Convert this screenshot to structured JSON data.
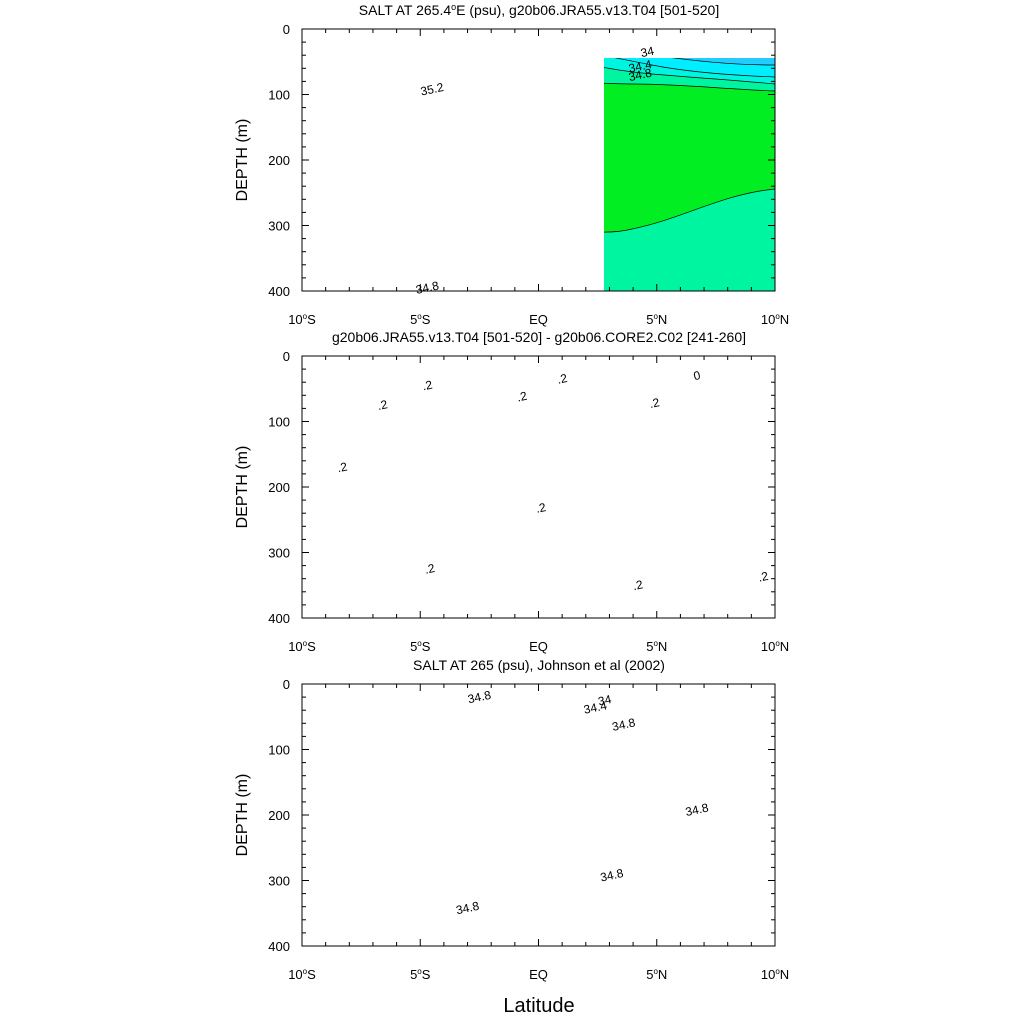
{
  "figure": {
    "x_title": "Latitude",
    "colors": {
      "s_yellow": "#ffff00",
      "s_lightgreen": "#99ff33",
      "s_green": "#00ee22",
      "s_mint": "#00f5a0",
      "s_aqua": "#00f5e0",
      "s_cyan": "#00eeff",
      "s_sky": "#22ccff",
      "s_blue": "#1188ee",
      "s_navy": "#0022dd",
      "d_yellow": "#ffff00",
      "d_orange": "#ffd633",
      "d_green": "#55ee00",
      "d_teal": "#00e890",
      "d_cyan": "#00ddee",
      "d_sky": "#22aaff"
    }
  },
  "chart_data": [
    {
      "type": "contour",
      "title": "SALT AT 265.4°E (psu), g20b06.JRA55.v13.T04 [501-520]",
      "title_prefix": "SALT AT 265.4",
      "title_super": "o",
      "title_suffix": "E (psu), g20b06.JRA55.v13.T04 [501-520]",
      "xlabel": "",
      "ylabel": "DEPTH (m)",
      "x_unit": "degrees latitude",
      "xlim": [
        -10,
        10
      ],
      "ylim": [
        0,
        400
      ],
      "y_reversed": true,
      "x_ticks": [
        {
          "value": -10,
          "label": "10°S",
          "pre": "10",
          "sup": "o",
          "post": "S"
        },
        {
          "value": -5,
          "label": "5°S",
          "pre": "5",
          "sup": "o",
          "post": "S"
        },
        {
          "value": 0,
          "label": "EQ",
          "pre": "EQ",
          "sup": "",
          "post": ""
        },
        {
          "value": 5,
          "label": "5°N",
          "pre": "5",
          "sup": "o",
          "post": "N"
        },
        {
          "value": 10,
          "label": "10°N",
          "pre": "10",
          "sup": "o",
          "post": "N"
        }
      ],
      "y_ticks": [
        0,
        100,
        200,
        300,
        400
      ],
      "contour_labels": [
        {
          "text": "34",
          "x": 4.6,
          "y": 35
        },
        {
          "text": "34.4",
          "x": 4.3,
          "y": 57
        },
        {
          "text": "34.8",
          "x": 4.3,
          "y": 70
        },
        {
          "text": "35.2",
          "x": -4.5,
          "y": 92
        },
        {
          "text": "34.8",
          "x": -4.7,
          "y": 395
        }
      ]
    },
    {
      "type": "contour",
      "title": "g20b06.JRA55.v13.T04 [501-520] - g20b06.CORE2.C02 [241-260]",
      "xlabel": "",
      "ylabel": "DEPTH (m)",
      "x_unit": "degrees latitude",
      "xlim": [
        -10,
        10
      ],
      "ylim": [
        0,
        400
      ],
      "y_reversed": true,
      "x_ticks": [
        {
          "value": -10,
          "label": "10°S",
          "pre": "10",
          "sup": "o",
          "post": "S"
        },
        {
          "value": -5,
          "label": "5°S",
          "pre": "5",
          "sup": "o",
          "post": "S"
        },
        {
          "value": 0,
          "label": "EQ",
          "pre": "EQ",
          "sup": "",
          "post": ""
        },
        {
          "value": 5,
          "label": "5°N",
          "pre": "5",
          "sup": "o",
          "post": "N"
        },
        {
          "value": 10,
          "label": "10°N",
          "pre": "10",
          "sup": "o",
          "post": "N"
        }
      ],
      "y_ticks": [
        0,
        100,
        200,
        300,
        400
      ],
      "contour_labels": [
        {
          "text": ".2",
          "x": -4.7,
          "y": 45
        },
        {
          "text": ".2",
          "x": -6.6,
          "y": 75
        },
        {
          "text": ".2",
          "x": -0.7,
          "y": 62
        },
        {
          "text": ".2",
          "x": 1.0,
          "y": 35
        },
        {
          "text": ".2",
          "x": 4.9,
          "y": 72
        },
        {
          "text": "0",
          "x": 6.7,
          "y": 30
        },
        {
          "text": ".2",
          "x": -8.3,
          "y": 170
        },
        {
          "text": ".2",
          "x": 0.1,
          "y": 232
        },
        {
          "text": ".2",
          "x": -4.6,
          "y": 325
        },
        {
          "text": ".2",
          "x": 4.2,
          "y": 350
        },
        {
          "text": ".2",
          "x": 9.5,
          "y": 337
        }
      ]
    },
    {
      "type": "contour",
      "title": "SALT AT 265 (psu), Johnson et al (2002)",
      "xlabel": "",
      "ylabel": "DEPTH (m)",
      "x_unit": "degrees latitude",
      "xlim": [
        -10,
        10
      ],
      "ylim": [
        0,
        400
      ],
      "y_reversed": true,
      "x_ticks": [
        {
          "value": -10,
          "label": "10°S",
          "pre": "10",
          "sup": "o",
          "post": "S"
        },
        {
          "value": -5,
          "label": "5°S",
          "pre": "5",
          "sup": "o",
          "post": "S"
        },
        {
          "value": 0,
          "label": "EQ",
          "pre": "EQ",
          "sup": "",
          "post": ""
        },
        {
          "value": 5,
          "label": "5°N",
          "pre": "5",
          "sup": "o",
          "post": "N"
        },
        {
          "value": 10,
          "label": "10°N",
          "pre": "10",
          "sup": "o",
          "post": "N"
        }
      ],
      "y_ticks": [
        0,
        100,
        200,
        300,
        400
      ],
      "data_xlim": [
        -8,
        8
      ],
      "data_ylim": [
        5,
        400
      ],
      "contour_labels": [
        {
          "text": "34.8",
          "x": -2.5,
          "y": 20
        },
        {
          "text": "34",
          "x": 2.8,
          "y": 25
        },
        {
          "text": "34.4",
          "x": 2.4,
          "y": 36
        },
        {
          "text": "34.8",
          "x": 3.6,
          "y": 62
        },
        {
          "text": "34.8",
          "x": 6.7,
          "y": 192
        },
        {
          "text": "34.8",
          "x": 3.1,
          "y": 292
        },
        {
          "text": "34.8",
          "x": -3.0,
          "y": 342
        }
      ]
    }
  ]
}
